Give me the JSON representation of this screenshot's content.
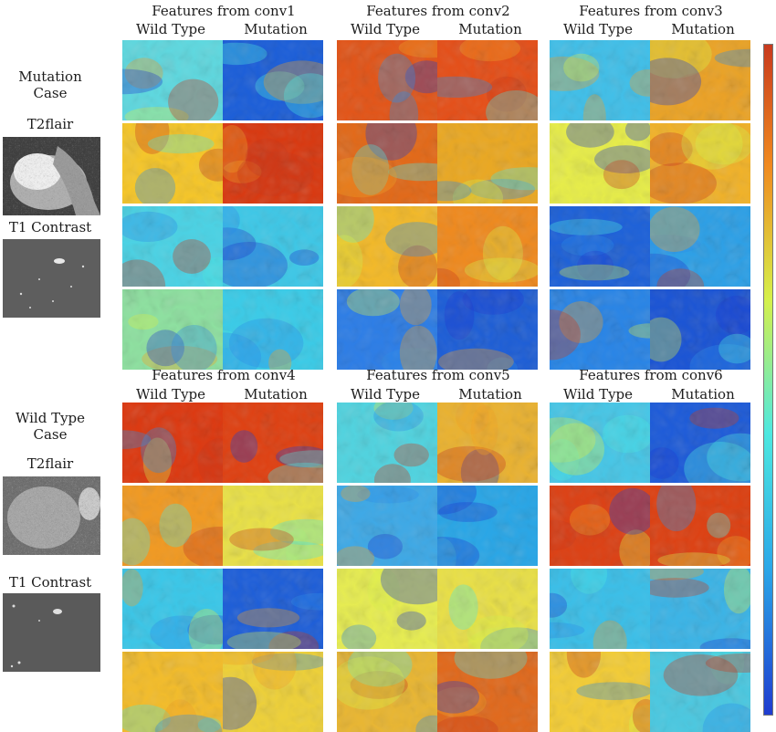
{
  "left_panel": {
    "mutation_case": {
      "title_line1": "Mutation",
      "title_line2": "Case",
      "t2flair": "T2flair",
      "t1contrast": "T1 Contrast"
    },
    "wildtype_case": {
      "title_line1": "Wild Type",
      "title_line2": "Case",
      "t2flair": "T2flair",
      "t1contrast": "T1 Contrast"
    }
  },
  "panels": [
    {
      "title": "Features from conv1",
      "wild": "Wild Type",
      "mut": "Mutation",
      "tiles": [
        [
          "#5fd8df",
          "#1d5fd8"
        ],
        [
          "#f5c62a",
          "#d83a12"
        ],
        [
          "#4cd2e4",
          "#3fc7e6"
        ],
        [
          "#8ee0a0",
          "#3ccbe7"
        ]
      ]
    },
    {
      "title": "Features from conv2",
      "wild": "Wild Type",
      "mut": "Mutation",
      "tiles": [
        [
          "#e2561a",
          "#e4501a"
        ],
        [
          "#e26a1a",
          "#e9a824"
        ],
        [
          "#f2b92a",
          "#ee8a20"
        ],
        [
          "#2e7ee6",
          "#1f5fd6"
        ]
      ]
    },
    {
      "title": "Features from conv3",
      "wild": "Wild Type",
      "mut": "Mutation",
      "tiles": [
        [
          "#42bfe8",
          "#e9a328"
        ],
        [
          "#e6ec4a",
          "#f0b22a"
        ],
        [
          "#1f62d8",
          "#2ea0e6"
        ],
        [
          "#2a85e6",
          "#1c55d4"
        ]
      ]
    },
    {
      "title": "Features from conv4",
      "wild": "Wild Type",
      "mut": "Mutation",
      "tiles": [
        [
          "#dc3a12",
          "#de4214"
        ],
        [
          "#f09a24",
          "#e8e048"
        ],
        [
          "#3cc7e8",
          "#1f5fd8"
        ],
        [
          "#f2bc2c",
          "#edd03a"
        ]
      ]
    },
    {
      "title": "Features from conv5",
      "wild": "Wild Type",
      "mut": "Mutation",
      "tiles": [
        [
          "#52d3df",
          "#e9b232"
        ],
        [
          "#3fa9e6",
          "#2aa6e6"
        ],
        [
          "#e6ec52",
          "#e8df48"
        ],
        [
          "#e8b634",
          "#e06a1e"
        ]
      ]
    },
    {
      "title": "Features from conv6",
      "wild": "Wild Type",
      "mut": "Mutation",
      "tiles": [
        [
          "#48c6e6",
          "#1f5cd8"
        ],
        [
          "#dc4216",
          "#dc4214"
        ],
        [
          "#3cbfe8",
          "#3cb4e6"
        ],
        [
          "#f2cc38",
          "#4cc8e0"
        ]
      ]
    }
  ],
  "colorbar": {
    "low": "#1f3ccf",
    "mid": "#4de8e0",
    "mid2": "#d6f04a",
    "high": "#c83a1e"
  }
}
